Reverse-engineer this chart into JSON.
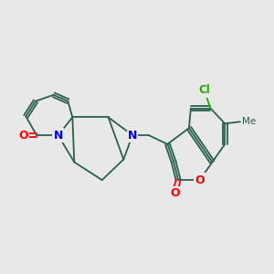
{
  "background_color": "#e8e8e8",
  "bond_color": "#2a5f4f",
  "atom_colors": {
    "O": "#ff0000",
    "N": "#0000ee",
    "Cl": "#22aa00",
    "C": "#2a5f4f"
  },
  "figsize": [
    3.0,
    3.0
  ],
  "dpi": 100
}
